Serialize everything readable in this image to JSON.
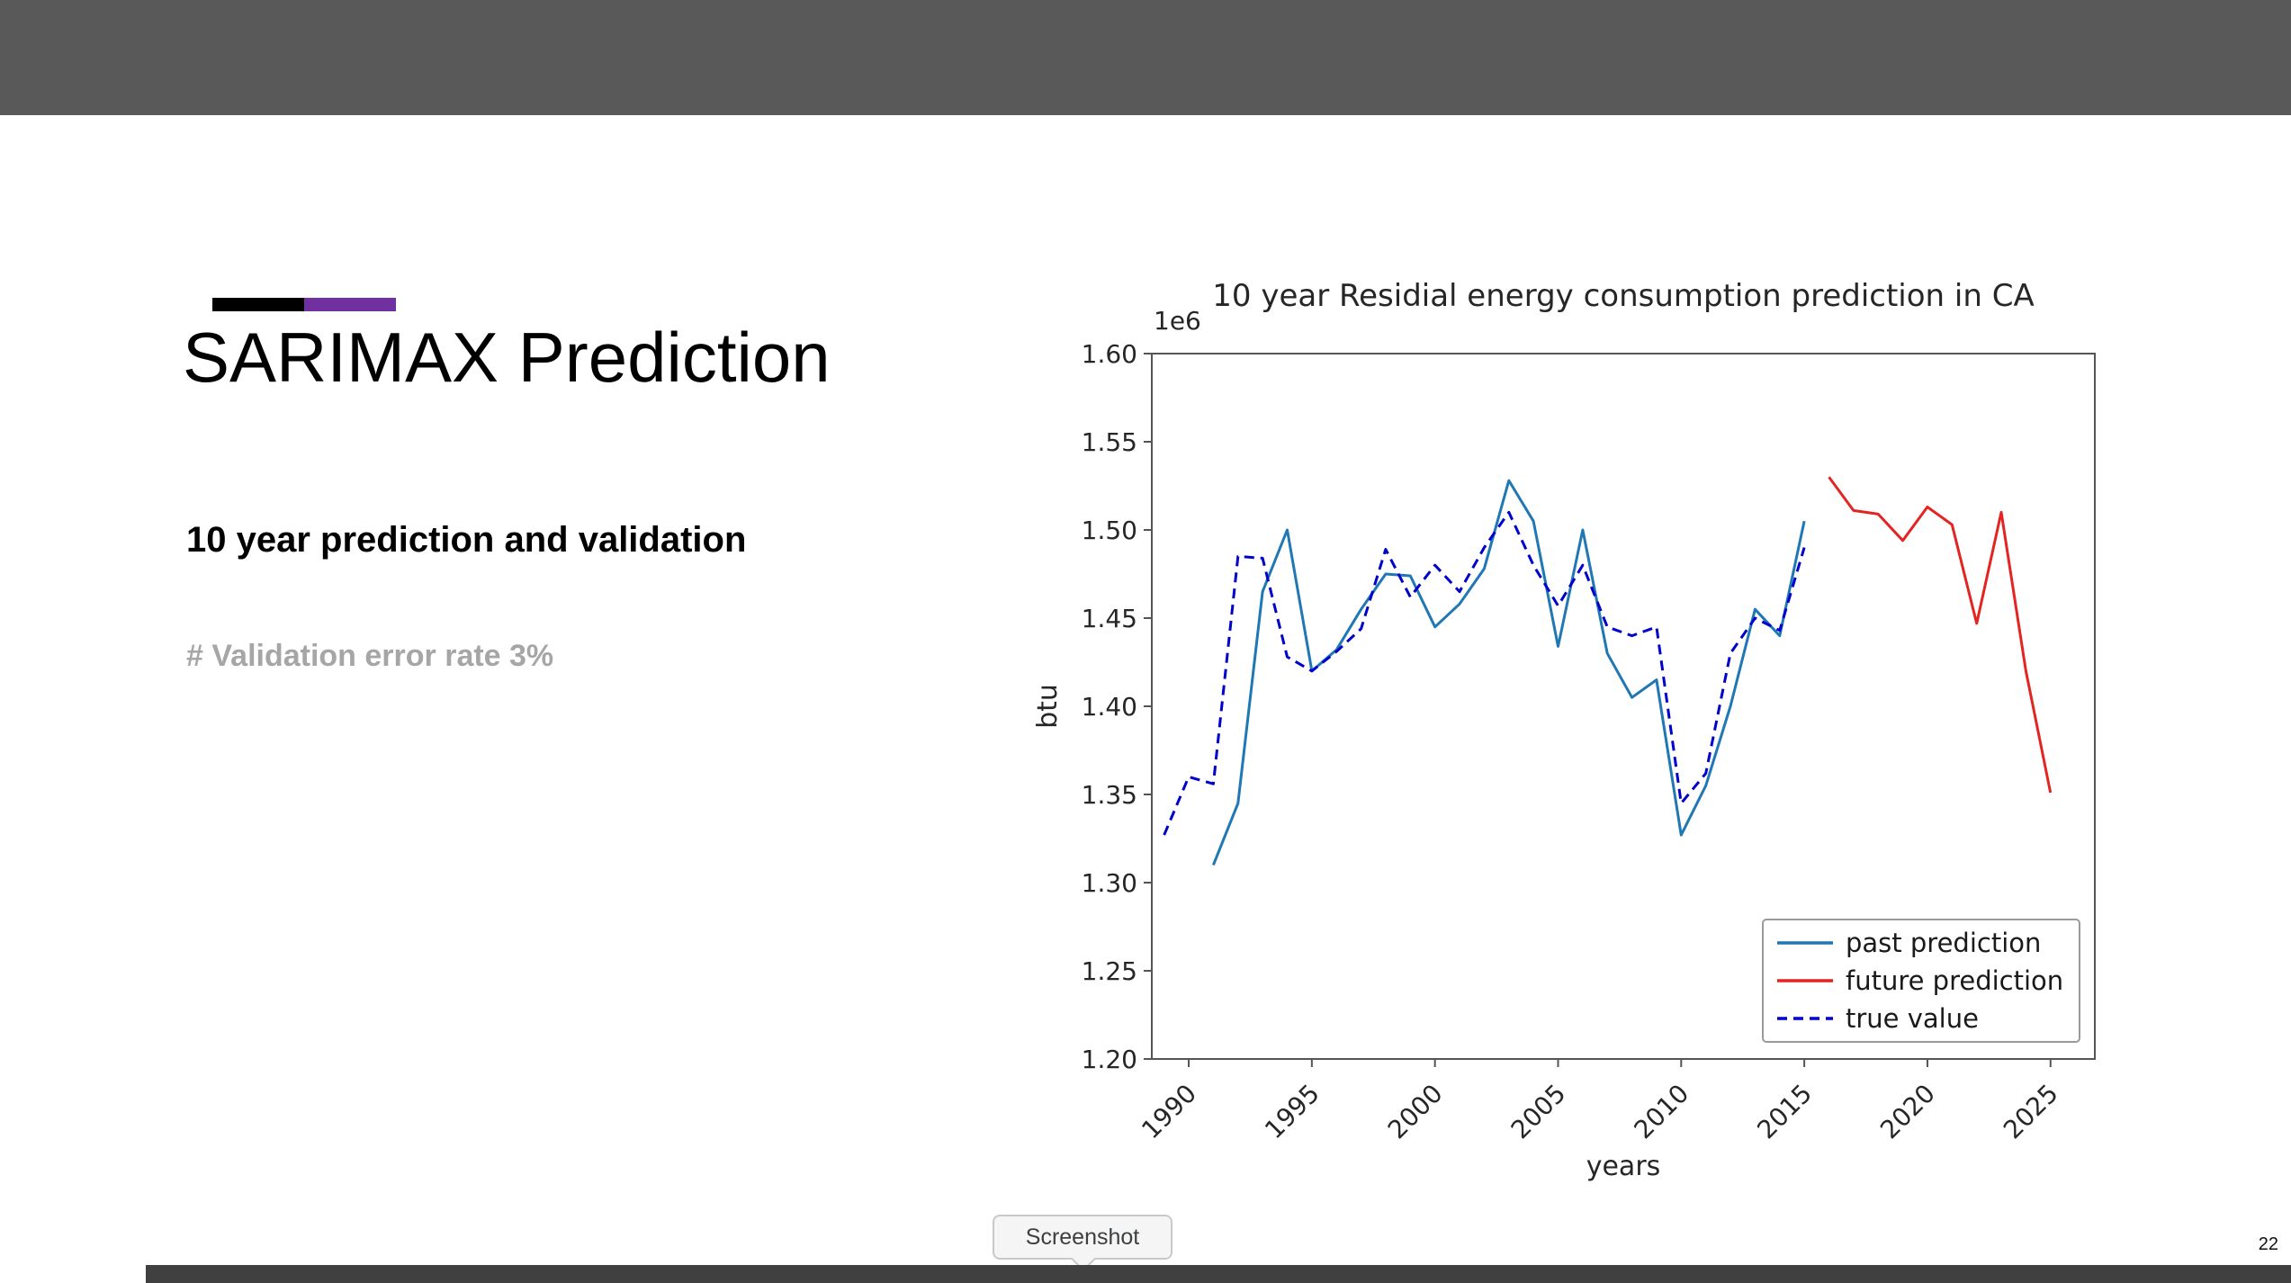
{
  "slide": {
    "title": "SARIMAX Prediction",
    "subtitle": "10 year prediction and validation",
    "note": "# Validation error rate 3%",
    "page_number": "22",
    "colors": {
      "top_bar": "#595959",
      "bottom_bar": "#404040",
      "accent_black": "#000000",
      "accent_purple": "#7030a0",
      "note_gray": "#a6a6a6"
    }
  },
  "tooltip": {
    "label": "Screenshot"
  },
  "chart_data": {
    "type": "line",
    "title": "10 year Residial energy consumption prediction in CA",
    "xlabel": "years",
    "ylabel": "btu",
    "y_offset_label": "1e6",
    "xlim": [
      1988.5,
      2026.8
    ],
    "ylim": [
      1.2,
      1.6
    ],
    "xticks": [
      1990,
      1995,
      2000,
      2005,
      2010,
      2015,
      2020,
      2025
    ],
    "yticks": [
      1.2,
      1.25,
      1.3,
      1.35,
      1.4,
      1.45,
      1.5,
      1.55,
      1.6
    ],
    "grid": false,
    "legend": {
      "position": "lower right",
      "entries": [
        "past prediction",
        "future prediction",
        "true value"
      ]
    },
    "series": [
      {
        "name": "past prediction",
        "color": "#1f77b4",
        "style": "solid",
        "x": [
          1991,
          1992,
          1993,
          1994,
          1995,
          1996,
          1997,
          1998,
          1999,
          2000,
          2001,
          2002,
          2003,
          2004,
          2005,
          2006,
          2007,
          2008,
          2009,
          2010,
          2011,
          2012,
          2013,
          2014,
          2015
        ],
        "y": [
          1.31,
          1.345,
          1.465,
          1.5,
          1.42,
          1.432,
          1.455,
          1.475,
          1.474,
          1.445,
          1.458,
          1.478,
          1.528,
          1.505,
          1.434,
          1.5,
          1.43,
          1.405,
          1.415,
          1.327,
          1.355,
          1.4,
          1.455,
          1.44,
          1.505
        ]
      },
      {
        "name": "future prediction",
        "color": "#e32421",
        "style": "solid",
        "x": [
          2016,
          2017,
          2018,
          2019,
          2020,
          2021,
          2022,
          2023,
          2024,
          2025
        ],
        "y": [
          1.53,
          1.511,
          1.509,
          1.494,
          1.513,
          1.503,
          1.447,
          1.51,
          1.42,
          1.351
        ]
      },
      {
        "name": "true value",
        "color": "#0000cd",
        "style": "dashed",
        "x": [
          1989,
          1990,
          1991,
          1992,
          1993,
          1994,
          1995,
          1996,
          1997,
          1998,
          1999,
          2000,
          2001,
          2002,
          2003,
          2004,
          2005,
          2006,
          2007,
          2008,
          2009,
          2010,
          2011,
          2012,
          2013,
          2014,
          2015
        ],
        "y": [
          1.327,
          1.36,
          1.356,
          1.485,
          1.484,
          1.428,
          1.42,
          1.431,
          1.444,
          1.489,
          1.462,
          1.48,
          1.465,
          1.49,
          1.51,
          1.48,
          1.457,
          1.48,
          1.445,
          1.44,
          1.445,
          1.345,
          1.362,
          1.43,
          1.45,
          1.443,
          1.49
        ]
      }
    ]
  }
}
